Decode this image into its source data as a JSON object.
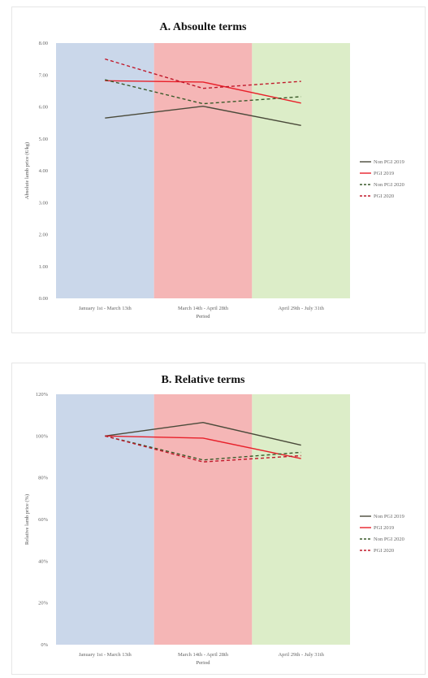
{
  "chart_data": [
    {
      "type": "line",
      "title": "A. Absoulte terms",
      "xlabel": "Period",
      "ylabel": "Absolute lamb price (€/kg)",
      "categories": [
        "January 1st - March 13th",
        "March 14th - April 28th",
        "April 29th - July 31th"
      ],
      "yticks": [
        "0.00",
        "1.00",
        "2.00",
        "3.00",
        "4.00",
        "5.00",
        "6.00",
        "7.00",
        "8.00"
      ],
      "ylim": [
        0,
        8
      ],
      "band_colors": [
        "#cad7ea",
        "#f5b6b6",
        "#dcedc8"
      ],
      "legend_position": "right",
      "series": [
        {
          "name": "Non PGI 2019",
          "values": [
            5.65,
            6.02,
            5.42
          ],
          "color": "#4a4a3a",
          "dash": false
        },
        {
          "name": "PGI 2019",
          "values": [
            6.82,
            6.78,
            6.12
          ],
          "color": "#e8202a",
          "dash": false
        },
        {
          "name": "Non PGI 2020",
          "values": [
            6.85,
            6.1,
            6.32
          ],
          "color": "#3a5a2a",
          "dash": true
        },
        {
          "name": "PGI 2020",
          "values": [
            7.5,
            6.58,
            6.8
          ],
          "color": "#c0182a",
          "dash": true
        }
      ]
    },
    {
      "type": "line",
      "title": "B. Relative terms",
      "xlabel": "Period",
      "ylabel": "Relative lamb price (%)",
      "categories": [
        "January 1st - March 13th",
        "March 14th - April 28th",
        "April 29th - July 31th"
      ],
      "yticks": [
        "0%",
        "20%",
        "40%",
        "60%",
        "80%",
        "100%",
        "120%"
      ],
      "ylim": [
        0,
        120
      ],
      "band_colors": [
        "#cad7ea",
        "#f5b6b6",
        "#dcedc8"
      ],
      "legend_position": "right",
      "series": [
        {
          "name": "Non PGI 2019",
          "values": [
            100,
            106.5,
            95.6
          ],
          "color": "#4a4a3a",
          "dash": false
        },
        {
          "name": "PGI 2019",
          "values": [
            100,
            99.0,
            89.2
          ],
          "color": "#e8202a",
          "dash": false
        },
        {
          "name": "Non PGI 2020",
          "values": [
            100,
            88.5,
            92.2
          ],
          "color": "#3a5a2a",
          "dash": true
        },
        {
          "name": "PGI 2020",
          "values": [
            100,
            87.6,
            90.6
          ],
          "color": "#c0182a",
          "dash": true
        }
      ]
    }
  ]
}
